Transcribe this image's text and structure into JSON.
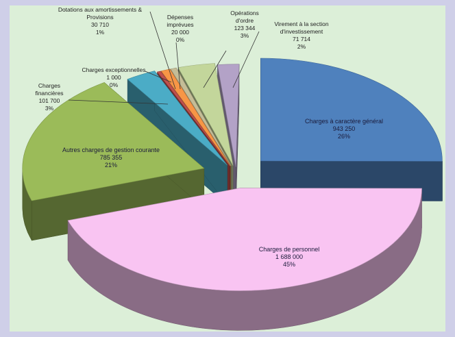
{
  "chart_data": {
    "type": "pie",
    "style": "3d-exploded",
    "slices": [
      {
        "key": "general",
        "lines": [
          "Charges à caractère général",
          "943 250",
          "26%"
        ],
        "value": 943250,
        "percent": 26,
        "color": "#4f81bd"
      },
      {
        "key": "personnel",
        "lines": [
          "Charges de personnel",
          "1 688 000",
          "45%"
        ],
        "value": 1688000,
        "percent": 45,
        "color": "#f9c4f2"
      },
      {
        "key": "autres",
        "lines": [
          "Autres charges de gestion courante",
          "785 355",
          "21%"
        ],
        "value": 785355,
        "percent": 21,
        "color": "#9bbb59"
      },
      {
        "key": "financieres",
        "lines": [
          "Charges",
          "financières",
          "101 700",
          "3%"
        ],
        "value": 101700,
        "percent": 3,
        "color": "#4bacc6"
      },
      {
        "key": "exceptionnelles",
        "lines": [
          "Charges exceptionnelles",
          "1 000",
          "0%"
        ],
        "value": 1000,
        "percent": 0,
        "color": "#c0504d"
      },
      {
        "key": "dotations",
        "lines": [
          "Dotations aux amortissements &",
          "Provisions",
          "30 710",
          "1%"
        ],
        "value": 30710,
        "percent": 1,
        "color": "#f79646"
      },
      {
        "key": "depenses",
        "lines": [
          "Dépenses",
          "imprévues",
          "20 000",
          "0%"
        ],
        "value": 20000,
        "percent": 0,
        "color": "#c4bd97"
      },
      {
        "key": "ordre",
        "lines": [
          "Opérations",
          "d'ordre",
          "123 344",
          "3%"
        ],
        "value": 123344,
        "percent": 3,
        "color": "#c3d69b"
      },
      {
        "key": "virement",
        "lines": [
          "Virement à la section",
          "d'investissement",
          "71 714",
          "2%"
        ],
        "value": 71714,
        "percent": 2,
        "color": "#b3a2c7"
      }
    ]
  }
}
